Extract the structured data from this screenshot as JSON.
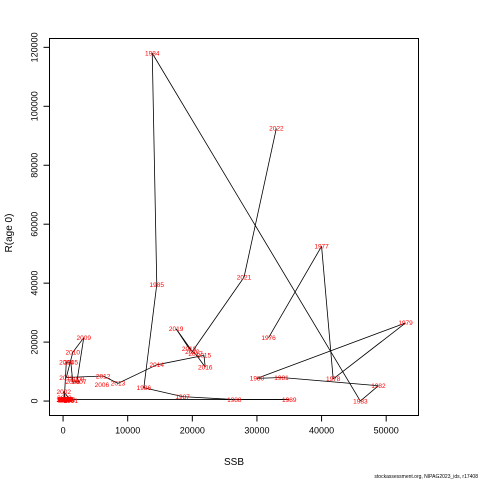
{
  "chart_data": {
    "type": "line",
    "xlabel": "SSB",
    "ylabel": "R(age 0)",
    "xlim": [
      -2100,
      55000
    ],
    "ylim": [
      -4900,
      123000
    ],
    "x_ticks": [
      0,
      10000,
      20000,
      30000,
      40000,
      50000
    ],
    "y_ticks": [
      0,
      20000,
      40000,
      60000,
      80000,
      100000,
      120000
    ],
    "connect_points": true,
    "line_color": "#000000",
    "label_color": "#ff0000",
    "source": "stockassessment.org, NIPAG2023_ids, r17408",
    "points": [
      {
        "year": "1978",
        "x": 41800,
        "y": 7500
      },
      {
        "year": "1979",
        "x": 53000,
        "y": 26500
      },
      {
        "year": "1980",
        "x": 30000,
        "y": 7700
      },
      {
        "year": "1981",
        "x": 33800,
        "y": 8000
      },
      {
        "year": "1982",
        "x": 48800,
        "y": 5200
      },
      {
        "year": "1983",
        "x": 46000,
        "y": 0
      },
      {
        "year": "1984",
        "x": 13800,
        "y": 118000
      },
      {
        "year": "1985",
        "x": 14500,
        "y": 39500
      },
      {
        "year": "1986",
        "x": 12500,
        "y": 4500
      },
      {
        "year": "1987",
        "x": 18500,
        "y": 1500
      },
      {
        "year": "1988",
        "x": 26500,
        "y": 500
      },
      {
        "year": "1989",
        "x": 35000,
        "y": 500
      },
      {
        "year": "1990",
        "x": 200,
        "y": 500
      },
      {
        "year": "1991",
        "x": 50,
        "y": 400
      },
      {
        "year": "1992",
        "x": 100,
        "y": 600
      },
      {
        "year": "1993",
        "x": 150,
        "y": 500
      },
      {
        "year": "1994",
        "x": 300,
        "y": 300
      },
      {
        "year": "1995",
        "x": 250,
        "y": 700
      },
      {
        "year": "1996",
        "x": 400,
        "y": 400
      },
      {
        "year": "1997",
        "x": 500,
        "y": 600
      },
      {
        "year": "1998",
        "x": 350,
        "y": 500
      },
      {
        "year": "1999",
        "x": 600,
        "y": 300
      },
      {
        "year": "2000",
        "x": 800,
        "y": 500
      },
      {
        "year": "2001",
        "x": 1200,
        "y": 200
      },
      {
        "year": "2002",
        "x": 100,
        "y": 3200
      },
      {
        "year": "2003",
        "x": 200,
        "y": 1200
      },
      {
        "year": "2004",
        "x": 500,
        "y": 13200
      },
      {
        "year": "2005",
        "x": 1200,
        "y": 13200
      },
      {
        "year": "2006",
        "x": 1500,
        "y": 6500
      },
      {
        "year": "2007",
        "x": 2500,
        "y": 6500
      },
      {
        "year": "2008",
        "x": 2200,
        "y": 7400
      },
      {
        "year": "2009",
        "x": 3200,
        "y": 21500
      },
      {
        "year": "2010",
        "x": 1500,
        "y": 16500
      },
      {
        "year": "2011",
        "x": 500,
        "y": 8000
      },
      {
        "year": "2012",
        "x": 6200,
        "y": 8500
      },
      {
        "year": "2013",
        "x": 8500,
        "y": 6000
      },
      {
        "year": "2014",
        "x": 14500,
        "y": 12300
      },
      {
        "year": "2015",
        "x": 21800,
        "y": 15500
      },
      {
        "year": "2016",
        "x": 22000,
        "y": 11500
      },
      {
        "year": "2017",
        "x": 20500,
        "y": 16000
      },
      {
        "year": "2018",
        "x": 19500,
        "y": 17800
      },
      {
        "year": "2019",
        "x": 17500,
        "y": 24500
      },
      {
        "year": "2020",
        "x": 20000,
        "y": 16800
      },
      {
        "year": "2021",
        "x": 28000,
        "y": 42000
      },
      {
        "year": "2022",
        "x": 33000,
        "y": 92500
      },
      {
        "year": "1976",
        "x": 31800,
        "y": 21500
      },
      {
        "year": "1977",
        "x": 40000,
        "y": 52500
      },
      {
        "year": "2006b",
        "x": 6000,
        "y": 5500
      }
    ]
  }
}
